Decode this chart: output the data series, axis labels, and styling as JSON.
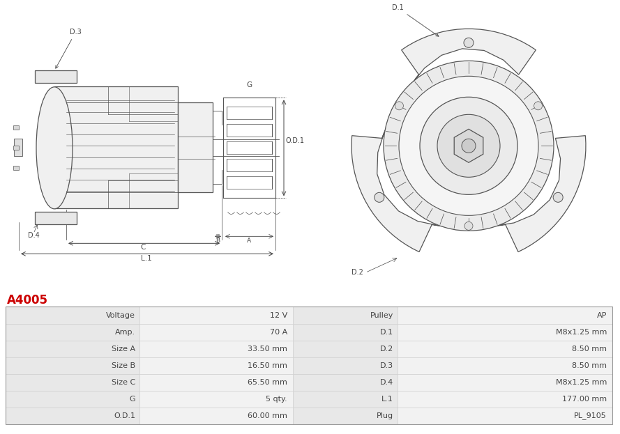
{
  "title": "A4005",
  "title_color": "#cc0000",
  "title_fontsize": 12,
  "bg_color": "#ffffff",
  "table_row_bg1": "#e8e8e8",
  "table_row_bg2": "#f2f2f2",
  "table_border": "#cccccc",
  "line_color": "#555555",
  "dim_color": "#444444",
  "table_data": [
    [
      "Voltage",
      "12 V",
      "Pulley",
      "AP"
    ],
    [
      "Amp.",
      "70 A",
      "D.1",
      "M8x1.25 mm"
    ],
    [
      "Size A",
      "33.50 mm",
      "D.2",
      "8.50 mm"
    ],
    [
      "Size B",
      "16.50 mm",
      "D.3",
      "8.50 mm"
    ],
    [
      "Size C",
      "65.50 mm",
      "D.4",
      "M8x1.25 mm"
    ],
    [
      "G",
      "5 qty.",
      "L.1",
      "177.00 mm"
    ],
    [
      "O.D.1",
      "60.00 mm",
      "Plug",
      "PL_9105"
    ]
  ]
}
